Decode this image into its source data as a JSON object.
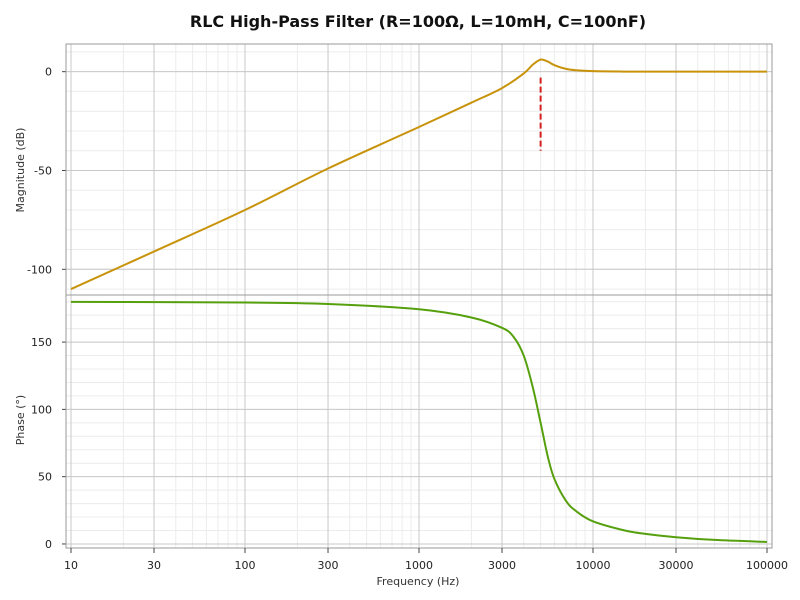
{
  "chart_data": {
    "title": "RLC High-Pass Filter (R=100Ω, L=10mH, C=100nF)",
    "x_axis": {
      "label": "Frequency (Hz)",
      "scale": "log",
      "range": [
        10,
        100000
      ],
      "tick_labels": [
        "10",
        "30",
        "100",
        "300",
        "1000",
        "3000",
        "10000",
        "30000",
        "100000"
      ],
      "tick_values": [
        10,
        30,
        100,
        300,
        1000,
        3000,
        10000,
        30000,
        100000
      ]
    },
    "charts": [
      {
        "type": "line",
        "ylabel": "Magnitude (dB)",
        "ylim": [
          -113,
          14
        ],
        "ytick_values": [
          0,
          -50,
          -100
        ],
        "ytick_labels": [
          "0",
          "-50",
          "-100"
        ],
        "series": [
          {
            "color": "#c8930a",
            "x": [
              10,
              30,
              100,
              300,
              1000,
              2000,
              3000,
              4000,
              4500,
              5000,
              5500,
              6000,
              7000,
              8000,
              10000,
              15000,
              20000,
              30000,
              50000,
              100000
            ],
            "y": [
              -110,
              -91,
              -70,
              -49,
              -28,
              -15.7,
              -8.3,
              -0.9,
              3.5,
              6.1,
              5.1,
              3.3,
              1.4,
              0.7,
              0.25,
              0.05,
              0.0,
              0.0,
              0.0,
              0.0
            ]
          }
        ],
        "marker_line": {
          "color": "#d42020",
          "x": 5000,
          "y_range": [
            -40,
            -3
          ]
        }
      },
      {
        "type": "line",
        "ylabel": "Phase (°)",
        "ylim": [
          -3,
          185
        ],
        "ytick_values": [
          150,
          100,
          50,
          0
        ],
        "ytick_labels": [
          "150",
          "100",
          "50",
          "0"
        ],
        "series": [
          {
            "color": "#56a00e",
            "x": [
              10,
              100,
              300,
              1000,
              2000,
              3000,
              3500,
              4000,
              4500,
              5000,
              5500,
              6000,
              7000,
              8000,
              10000,
              15000,
              20000,
              30000,
              50000,
              100000
            ],
            "y": [
              179.9,
              179.4,
              178.3,
              174.4,
              168.3,
              160.6,
              153.8,
              139.9,
              116.8,
              90,
              64.8,
              48.3,
              32.0,
              24.4,
              16.8,
              10.2,
              7.5,
              5.0,
              3.0,
              1.5
            ]
          }
        ]
      }
    ],
    "grid": true
  }
}
